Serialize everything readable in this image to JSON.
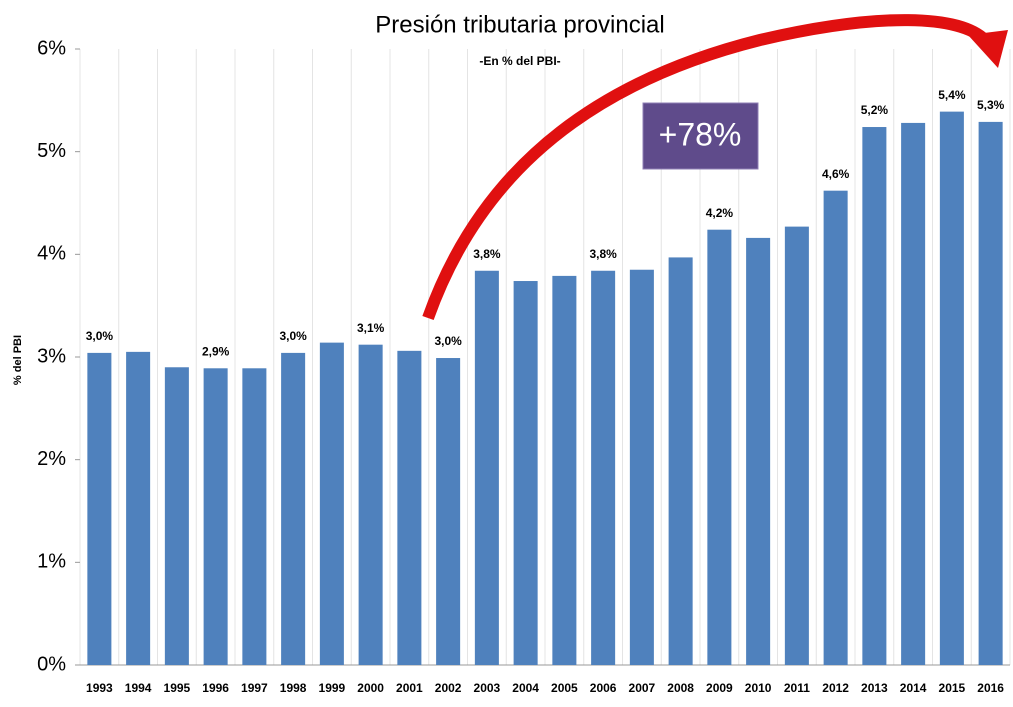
{
  "chart_data": {
    "type": "bar",
    "title": "Presión tributaria provincial",
    "subtitle": "-En % del PBI-",
    "y_label": "% del PBI",
    "annotation": "+78%",
    "categories": [
      "1993",
      "1994",
      "1995",
      "1996",
      "1997",
      "1998",
      "1999",
      "2000",
      "2001",
      "2002",
      "2003",
      "2004",
      "2005",
      "2006",
      "2007",
      "2008",
      "2009",
      "2010",
      "2011",
      "2012",
      "2013",
      "2014",
      "2015",
      "2016"
    ],
    "values": [
      3.04,
      3.05,
      2.9,
      2.89,
      2.89,
      3.04,
      3.14,
      3.12,
      3.06,
      2.99,
      3.84,
      3.74,
      3.79,
      3.84,
      3.85,
      3.97,
      4.24,
      4.16,
      4.27,
      4.62,
      5.24,
      5.28,
      5.39,
      5.29
    ],
    "value_labels": [
      "3,0%",
      null,
      null,
      "2,9%",
      null,
      "3,0%",
      null,
      "3,1%",
      null,
      "3,0%",
      "3,8%",
      null,
      null,
      "3,8%",
      null,
      null,
      "4,2%",
      null,
      null,
      "4,6%",
      "5,2%",
      null,
      "5,4%",
      "5,3%"
    ],
    "color": "#4f81bd",
    "ylim": [
      0,
      6
    ],
    "yticks": [
      {
        "value": 0,
        "label": "0%"
      },
      {
        "value": 1,
        "label": "1%"
      },
      {
        "value": 2,
        "label": "2%"
      },
      {
        "value": 3,
        "label": "3%"
      },
      {
        "value": 4,
        "label": "4%"
      },
      {
        "value": 5,
        "label": "5%"
      },
      {
        "value": 6,
        "label": "6%"
      }
    ],
    "grid": false
  }
}
